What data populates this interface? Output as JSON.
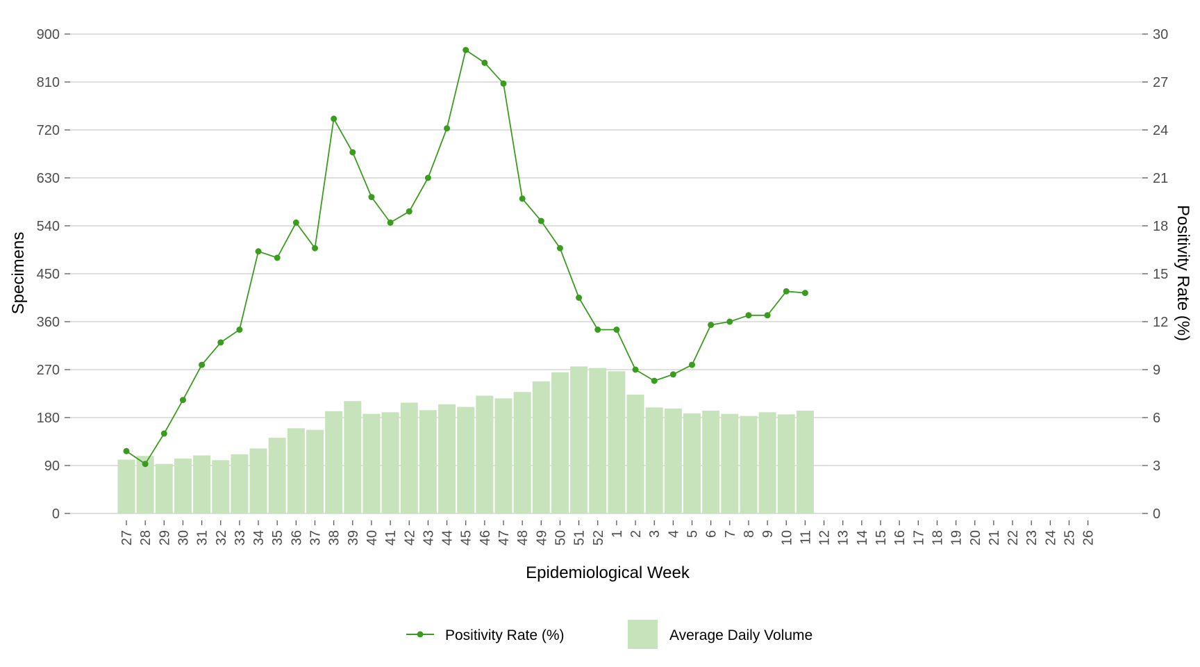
{
  "chart_data": {
    "type": "bar",
    "xlabel": "Epidemiological Week",
    "ylabel_left": "Specimens",
    "ylabel_right": "Positivity Rate (%)",
    "ylim_left": [
      0,
      900
    ],
    "ylim_right": [
      0,
      30
    ],
    "yticks_left": [
      "0",
      "90",
      "180",
      "270",
      "360",
      "450",
      "540",
      "630",
      "720",
      "810",
      "900"
    ],
    "yticks_right": [
      "0",
      "3",
      "6",
      "9",
      "12",
      "15",
      "18",
      "21",
      "24",
      "27",
      "30"
    ],
    "grid": "horizontal",
    "legend_position": "bottom",
    "categories": [
      "27",
      "28",
      "29",
      "30",
      "31",
      "32",
      "33",
      "34",
      "35",
      "36",
      "37",
      "38",
      "39",
      "40",
      "41",
      "42",
      "43",
      "44",
      "45",
      "46",
      "47",
      "48",
      "49",
      "50",
      "51",
      "52",
      "1",
      "2",
      "3",
      "4",
      "5",
      "6",
      "7",
      "8",
      "9",
      "10",
      "11",
      "12",
      "13",
      "14",
      "15",
      "16",
      "17",
      "18",
      "19",
      "20",
      "21",
      "22",
      "23",
      "24",
      "25",
      "26"
    ],
    "series": [
      {
        "name": "Average Daily Volume",
        "type": "bar",
        "axis": "left",
        "color": "#c7e3bb",
        "values": [
          101,
          108,
          93,
          103,
          109,
          100,
          111,
          122,
          142,
          160,
          157,
          192,
          211,
          187,
          190,
          208,
          194,
          205,
          200,
          221,
          216,
          228,
          248,
          265,
          276,
          273,
          267,
          223,
          199,
          197,
          188,
          193,
          187,
          183,
          190,
          186,
          193,
          null,
          null,
          null,
          null,
          null,
          null,
          null,
          null,
          null,
          null,
          null,
          null,
          null,
          null,
          null
        ]
      },
      {
        "name": "Positivity Rate (%)",
        "type": "line",
        "axis": "right",
        "color": "#3a9c1e",
        "values": [
          3.9,
          3.1,
          5.0,
          7.1,
          9.3,
          10.7,
          11.5,
          16.4,
          16.0,
          18.2,
          16.6,
          24.7,
          22.6,
          19.8,
          18.2,
          18.9,
          21.0,
          24.1,
          29.0,
          28.2,
          26.9,
          19.7,
          18.3,
          16.6,
          13.5,
          11.5,
          11.5,
          9.0,
          8.3,
          8.7,
          9.3,
          11.8,
          12.0,
          12.4,
          12.4,
          13.9,
          13.8,
          null,
          null,
          null,
          null,
          null,
          null,
          null,
          null,
          null,
          null,
          null,
          null,
          null,
          null,
          null
        ]
      }
    ]
  }
}
